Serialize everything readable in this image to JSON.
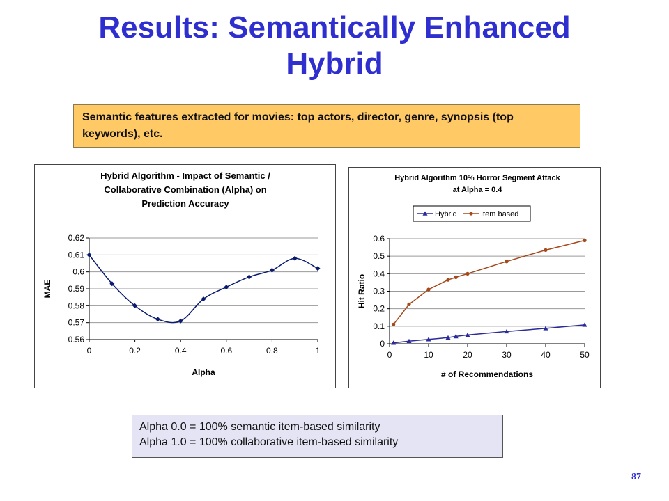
{
  "slide": {
    "title": "Results: Semantically Enhanced Hybrid",
    "features_text": "Semantic features extracted for movies: top actors, director,  genre, synopsis (top keywords), etc.",
    "alpha_note_line1": "Alpha 0.0 = 100% semantic item-based similarity",
    "alpha_note_line2": "Alpha 1.0 = 100% collaborative item-based similarity",
    "page_number": "87"
  },
  "chart_data": [
    {
      "type": "line",
      "title": "Hybrid Algorithm - Impact of Semantic / Collaborative Combination (Alpha) on Prediction Accuracy",
      "title_lines": [
        "Hybrid Algorithm - Impact of Semantic /",
        "Collaborative Combination (Alpha) on",
        "Prediction Accuracy"
      ],
      "xlabel": "Alpha",
      "ylabel": "MAE",
      "xlim": [
        0,
        1
      ],
      "ylim": [
        0.56,
        0.62
      ],
      "x_ticks": [
        "0",
        "0.2",
        "0.4",
        "0.6",
        "0.8",
        "1"
      ],
      "y_ticks": [
        "0.62",
        "0.61",
        "0.6",
        "0.59",
        "0.58",
        "0.57",
        "0.56"
      ],
      "grid": true,
      "legend": "none",
      "series": [
        {
          "color": "#0a1a6e",
          "marker": "diamond",
          "x": [
            0,
            0.1,
            0.2,
            0.3,
            0.4,
            0.5,
            0.6,
            0.7,
            0.8,
            0.9,
            1.0
          ],
          "y": [
            0.61,
            0.593,
            0.58,
            0.572,
            0.571,
            0.584,
            0.591,
            0.597,
            0.601,
            0.608,
            0.602
          ]
        }
      ]
    },
    {
      "type": "line",
      "title": "Hybrid Algorithm 10% Horror Segment Attack at Alpha = 0.4",
      "title_lines": [
        "Hybrid Algorithm 10% Horror Segment Attack",
        "at Alpha = 0.4"
      ],
      "xlabel": "# of Recommendations",
      "ylabel": "Hit Ratio",
      "xlim": [
        0,
        50
      ],
      "ylim": [
        0,
        0.6
      ],
      "x_ticks": [
        "0",
        "10",
        "20",
        "30",
        "40",
        "50"
      ],
      "y_ticks": [
        "0.6",
        "0.5",
        "0.4",
        "0.3",
        "0.2",
        "0.1",
        "0"
      ],
      "grid": true,
      "legend": "top",
      "series": [
        {
          "name": "Hybrid",
          "color": "#2a2a9a",
          "marker": "triangle",
          "x": [
            1,
            5,
            10,
            15,
            17,
            20,
            30,
            40,
            50
          ],
          "y": [
            0.005,
            0.015,
            0.025,
            0.035,
            0.042,
            0.05,
            0.07,
            0.088,
            0.108
          ]
        },
        {
          "name": "Item based",
          "color": "#a5481a",
          "marker": "circle",
          "x": [
            1,
            5,
            10,
            15,
            17,
            20,
            30,
            40,
            50
          ],
          "y": [
            0.11,
            0.225,
            0.31,
            0.365,
            0.38,
            0.4,
            0.47,
            0.535,
            0.59
          ]
        }
      ]
    }
  ]
}
